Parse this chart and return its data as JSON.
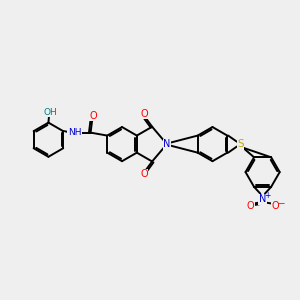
{
  "bg_color": "#efefef",
  "bond_color": "#000000",
  "bond_lw": 1.4,
  "atom_colors": {
    "O": "#ff0000",
    "N": "#0000cc",
    "S": "#bbaa00",
    "H_teal": "#008080",
    "C": "#000000"
  },
  "dbo": 0.055
}
